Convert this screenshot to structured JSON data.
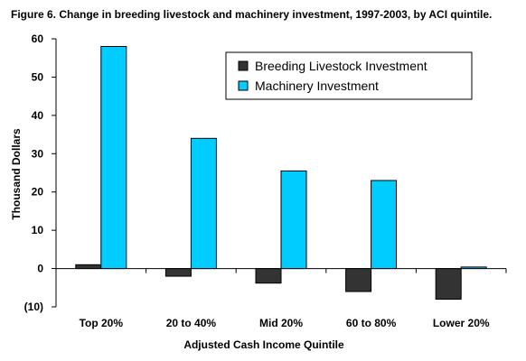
{
  "chart_data": {
    "type": "bar",
    "title": "Figure 6. Change in breeding livestock and machinery investment, 1997-2003, by ACI quintile.",
    "xlabel": "Adjusted Cash Income Quintile",
    "ylabel": "Thousand Dollars",
    "categories": [
      "Top 20%",
      "20 to 40%",
      "Mid 20%",
      "60 to 80%",
      "Lower 20%"
    ],
    "ylim": [
      -10,
      60
    ],
    "yticks": [
      60,
      50,
      40,
      30,
      20,
      10,
      0,
      -10
    ],
    "ytick_labels": [
      "60",
      "50",
      "40",
      "30",
      "20",
      "10",
      "0",
      "(10)"
    ],
    "grid": false,
    "legend_position": "top-right",
    "series": [
      {
        "name": "Breeding Livestock Investment",
        "values": [
          1.0,
          -2.0,
          -3.8,
          -6.0,
          -8.0
        ],
        "color": "#333333"
      },
      {
        "name": "Machinery Investment",
        "values": [
          58.0,
          34.0,
          25.5,
          23.0,
          0.4
        ],
        "color": "#00ccff"
      }
    ]
  }
}
